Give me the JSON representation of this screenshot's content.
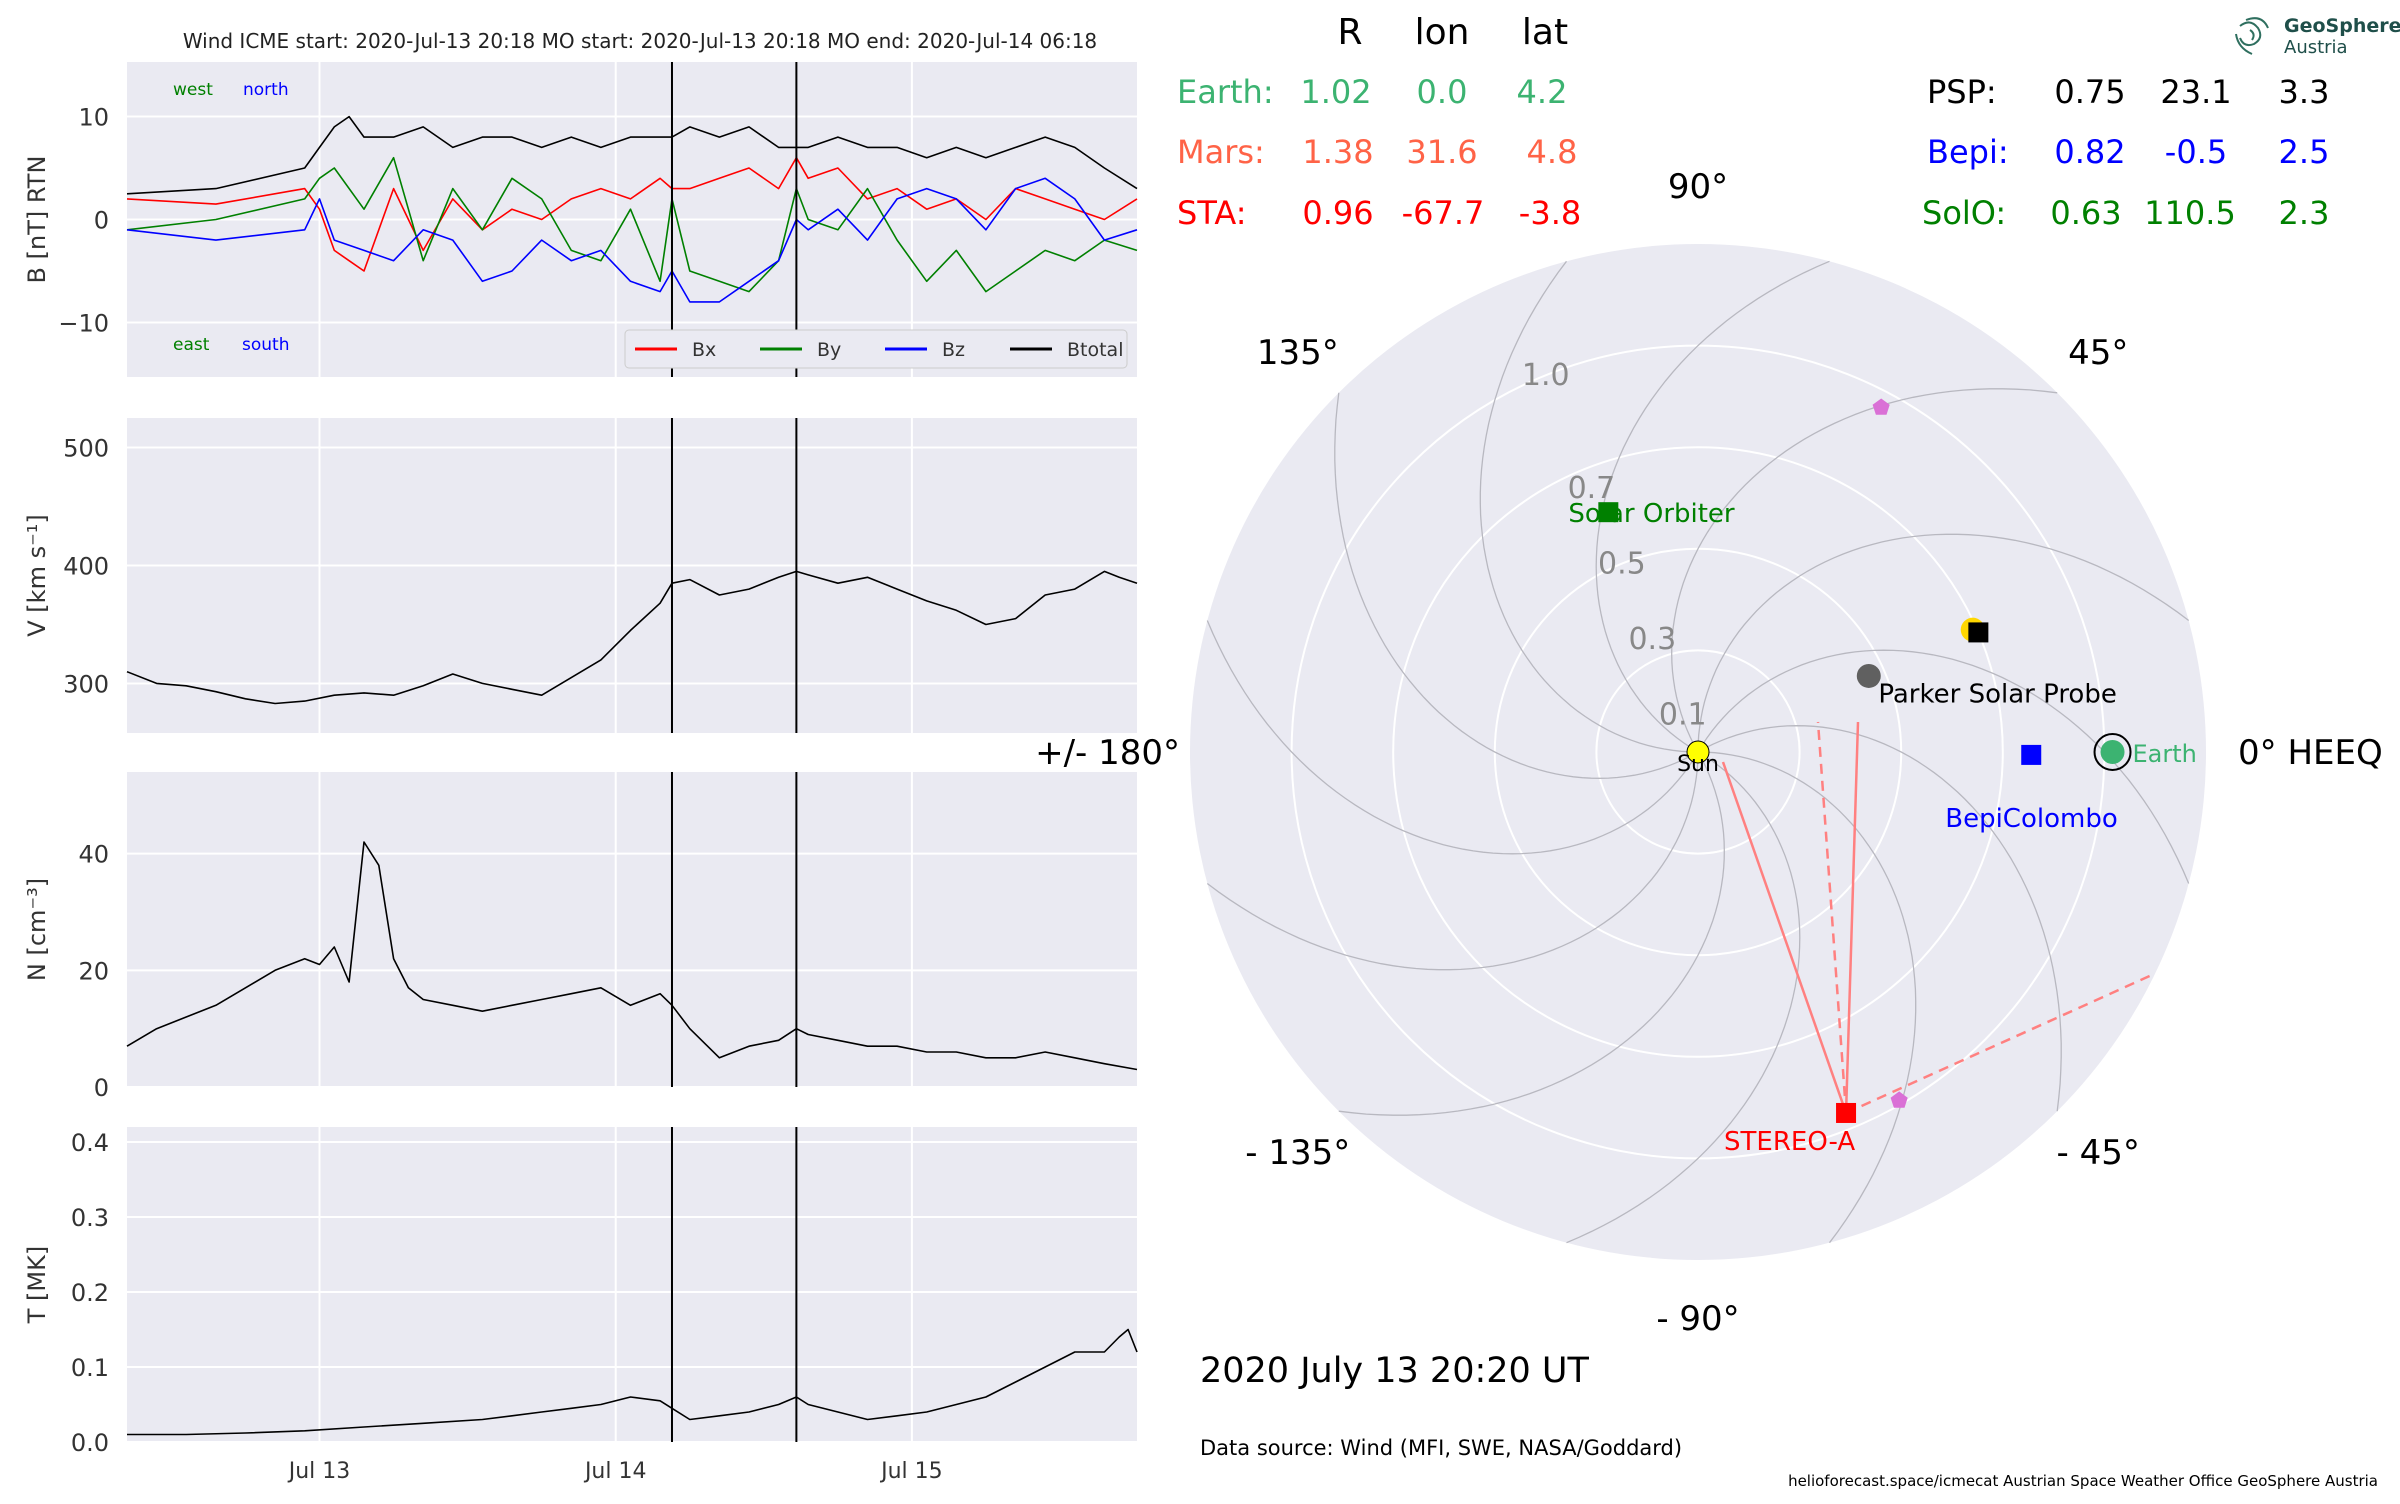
{
  "header": {
    "title": "Wind    ICME start: 2020-Jul-13 20:18   MO start: 2020-Jul-13 20:18   MO end: 2020-Jul-14 06:18"
  },
  "colors": {
    "panel_bg": "#EAEAF2",
    "bx": "#ff0000",
    "by": "#008000",
    "bz": "#0000ff",
    "btotal": "#000000",
    "earth": "#3cb371",
    "mars": "#ff6347",
    "sta": "#ff0000",
    "psp": "#000000",
    "bepi": "#0000ff",
    "solo": "#008000",
    "sun": "#ffff00",
    "psp_dot": "#606060",
    "pentagon": "#da70d6",
    "sta_lines": "#ff8080"
  },
  "pos_table": {
    "headers": [
      "R",
      "lon",
      "lat"
    ],
    "left_rows": [
      {
        "name": "Earth:",
        "r": "1.02",
        "lon": "0.0",
        "lat": "4.2",
        "color": "#3cb371"
      },
      {
        "name": "Mars:",
        "r": "1.38",
        "lon": "31.6",
        "lat": "4.8",
        "color": "#ff6347"
      },
      {
        "name": "STA:",
        "r": "0.96",
        "lon": "-67.7",
        "lat": "-3.8",
        "color": "#ff0000"
      }
    ],
    "right_rows": [
      {
        "name": "PSP:",
        "r": "0.75",
        "lon": "23.1",
        "lat": "3.3",
        "color": "#000000"
      },
      {
        "name": "Bepi:",
        "r": "0.82",
        "lon": "-0.5",
        "lat": "2.5",
        "color": "#0000ff"
      },
      {
        "name": "SolO:",
        "r": "0.63",
        "lon": "110.5",
        "lat": "2.3",
        "color": "#008000"
      }
    ]
  },
  "logo": {
    "line1": "GeoSphere",
    "line2": "Austria"
  },
  "footer": {
    "date": "2020 July 13  20:20 UT",
    "source": "Data source: Wind (MFI, SWE, NASA/Goddard)",
    "credits": "helioforecast.space/icmecat   Austrian Space Weather Office   GeoSphere Austria"
  },
  "chart_data": [
    {
      "type": "line",
      "ylabel": "B [nT] RTN",
      "ylim": [
        -15.3,
        15.3
      ],
      "yticks": [
        {
          "v": 10,
          "label": "10"
        },
        {
          "v": 0,
          "label": "0"
        },
        {
          "v": -10,
          "label": "−10"
        }
      ],
      "xlim": [
        0,
        3.41
      ],
      "vlines": [
        1.84,
        2.26
      ],
      "annotations": {
        "west": "west",
        "north": "north",
        "east": "east",
        "south": "south"
      },
      "legend_position": "lower right",
      "series": [
        {
          "name": "Bx",
          "color": "#ff0000",
          "x": [
            0,
            0.3,
            0.6,
            0.65,
            0.7,
            0.75,
            0.8,
            0.9,
            1.0,
            1.1,
            1.2,
            1.3,
            1.4,
            1.5,
            1.6,
            1.7,
            1.8,
            1.84,
            1.9,
            2.0,
            2.1,
            2.2,
            2.26,
            2.3,
            2.4,
            2.5,
            2.6,
            2.7,
            2.8,
            2.9,
            3.0,
            3.1,
            3.2,
            3.3,
            3.41
          ],
          "y": [
            2,
            1.5,
            3,
            1,
            -3,
            -4,
            -5,
            3,
            -3,
            2,
            -1,
            1,
            0,
            2,
            3,
            2,
            4,
            3,
            3,
            4,
            5,
            3,
            6,
            4,
            5,
            2,
            3,
            1,
            2,
            0,
            3,
            2,
            1,
            0,
            2
          ]
        },
        {
          "name": "By",
          "color": "#008000",
          "x": [
            0,
            0.3,
            0.6,
            0.65,
            0.7,
            0.8,
            0.9,
            1.0,
            1.1,
            1.2,
            1.3,
            1.4,
            1.5,
            1.6,
            1.7,
            1.8,
            1.84,
            1.9,
            2.0,
            2.1,
            2.2,
            2.26,
            2.3,
            2.4,
            2.5,
            2.6,
            2.7,
            2.8,
            2.9,
            3.0,
            3.1,
            3.2,
            3.3,
            3.41
          ],
          "y": [
            -1,
            0,
            2,
            4,
            5,
            1,
            6,
            -4,
            3,
            -1,
            4,
            2,
            -3,
            -4,
            1,
            -6,
            2,
            -5,
            -6,
            -7,
            -4,
            3,
            0,
            -1,
            3,
            -2,
            -6,
            -3,
            -7,
            -5,
            -3,
            -4,
            -2,
            -3
          ]
        },
        {
          "name": "Bz",
          "color": "#0000ff",
          "x": [
            0,
            0.3,
            0.6,
            0.65,
            0.7,
            0.8,
            0.9,
            1.0,
            1.1,
            1.2,
            1.3,
            1.4,
            1.5,
            1.6,
            1.7,
            1.8,
            1.84,
            1.9,
            2.0,
            2.1,
            2.2,
            2.26,
            2.3,
            2.4,
            2.5,
            2.6,
            2.7,
            2.8,
            2.9,
            3.0,
            3.1,
            3.2,
            3.3,
            3.41
          ],
          "y": [
            -1,
            -2,
            -1,
            2,
            -2,
            -3,
            -4,
            -1,
            -2,
            -6,
            -5,
            -2,
            -4,
            -3,
            -6,
            -7,
            -5,
            -8,
            -8,
            -6,
            -4,
            0,
            -1,
            1,
            -2,
            2,
            3,
            2,
            -1,
            3,
            4,
            2,
            -2,
            -1
          ]
        },
        {
          "name": "Btotal",
          "color": "#000000",
          "x": [
            0,
            0.3,
            0.6,
            0.65,
            0.7,
            0.75,
            0.8,
            0.9,
            1.0,
            1.1,
            1.2,
            1.3,
            1.4,
            1.5,
            1.6,
            1.7,
            1.8,
            1.84,
            1.9,
            2.0,
            2.1,
            2.2,
            2.26,
            2.3,
            2.4,
            2.5,
            2.6,
            2.7,
            2.8,
            2.9,
            3.0,
            3.1,
            3.2,
            3.3,
            3.41
          ],
          "y": [
            2.5,
            3,
            5,
            7,
            9,
            10,
            8,
            8,
            9,
            7,
            8,
            8,
            7,
            8,
            7,
            8,
            8,
            8,
            9,
            8,
            9,
            7,
            7,
            7,
            8,
            7,
            7,
            6,
            7,
            6,
            7,
            8,
            7,
            5,
            3
          ]
        }
      ]
    },
    {
      "type": "line",
      "ylabel": "V [km s⁻¹]",
      "ylim": [
        258,
        525
      ],
      "yticks": [
        {
          "v": 500,
          "label": "500"
        },
        {
          "v": 400,
          "label": "400"
        },
        {
          "v": 300,
          "label": "300"
        }
      ],
      "xlim": [
        0,
        3.41
      ],
      "vlines": [
        1.84,
        2.26
      ],
      "series": [
        {
          "name": "V",
          "color": "#000000",
          "x": [
            0,
            0.1,
            0.2,
            0.3,
            0.4,
            0.5,
            0.6,
            0.7,
            0.8,
            0.9,
            1.0,
            1.1,
            1.2,
            1.3,
            1.4,
            1.5,
            1.6,
            1.7,
            1.8,
            1.84,
            1.9,
            2.0,
            2.1,
            2.2,
            2.26,
            2.3,
            2.4,
            2.5,
            2.6,
            2.7,
            2.8,
            2.9,
            3.0,
            3.1,
            3.2,
            3.3,
            3.35,
            3.41
          ],
          "y": [
            310,
            300,
            298,
            293,
            287,
            283,
            285,
            290,
            292,
            290,
            298,
            308,
            300,
            295,
            290,
            305,
            320,
            345,
            368,
            385,
            388,
            375,
            380,
            390,
            395,
            392,
            385,
            390,
            380,
            370,
            362,
            350,
            355,
            375,
            380,
            395,
            390,
            385
          ]
        }
      ]
    },
    {
      "type": "line",
      "ylabel": "N [cm⁻³]",
      "ylim": [
        0,
        54
      ],
      "yticks": [
        {
          "v": 40,
          "label": "40"
        },
        {
          "v": 20,
          "label": "20"
        },
        {
          "v": 0,
          "label": "0"
        }
      ],
      "xlim": [
        0,
        3.41
      ],
      "vlines": [
        1.84,
        2.26
      ],
      "series": [
        {
          "name": "N",
          "color": "#000000",
          "x": [
            0,
            0.1,
            0.2,
            0.3,
            0.4,
            0.5,
            0.6,
            0.65,
            0.7,
            0.75,
            0.8,
            0.85,
            0.9,
            0.95,
            1.0,
            1.1,
            1.2,
            1.3,
            1.4,
            1.5,
            1.6,
            1.7,
            1.8,
            1.84,
            1.9,
            2.0,
            2.1,
            2.2,
            2.26,
            2.3,
            2.4,
            2.5,
            2.6,
            2.7,
            2.8,
            2.9,
            3.0,
            3.1,
            3.2,
            3.3,
            3.41
          ],
          "y": [
            7,
            10,
            12,
            14,
            17,
            20,
            22,
            21,
            24,
            18,
            42,
            38,
            22,
            17,
            15,
            14,
            13,
            14,
            15,
            16,
            17,
            14,
            16,
            14,
            10,
            5,
            7,
            8,
            10,
            9,
            8,
            7,
            7,
            6,
            6,
            5,
            5,
            6,
            5,
            4,
            3
          ]
        }
      ]
    },
    {
      "type": "line",
      "ylabel": "T [MK]",
      "ylim": [
        0,
        0.42
      ],
      "yticks": [
        {
          "v": 0.4,
          "label": "0.4"
        },
        {
          "v": 0.3,
          "label": "0.3"
        },
        {
          "v": 0.2,
          "label": "0.2"
        },
        {
          "v": 0.1,
          "label": "0.1"
        },
        {
          "v": 0.0,
          "label": "0.0"
        }
      ],
      "xlim": [
        0,
        3.41
      ],
      "vlines": [
        1.84,
        2.26
      ],
      "xticks": [
        {
          "v": 0.65,
          "label": "Jul 13"
        },
        {
          "v": 1.65,
          "label": "Jul 14"
        },
        {
          "v": 2.65,
          "label": "Jul 15"
        }
      ],
      "series": [
        {
          "name": "T",
          "color": "#000000",
          "x": [
            0,
            0.2,
            0.4,
            0.6,
            0.8,
            1.0,
            1.2,
            1.3,
            1.4,
            1.5,
            1.6,
            1.7,
            1.8,
            1.84,
            1.9,
            2.0,
            2.1,
            2.2,
            2.26,
            2.3,
            2.4,
            2.5,
            2.6,
            2.7,
            2.8,
            2.9,
            3.0,
            3.1,
            3.2,
            3.3,
            3.35,
            3.38,
            3.41
          ],
          "y": [
            0.01,
            0.01,
            0.012,
            0.015,
            0.02,
            0.025,
            0.03,
            0.035,
            0.04,
            0.045,
            0.05,
            0.06,
            0.055,
            0.045,
            0.03,
            0.035,
            0.04,
            0.05,
            0.06,
            0.05,
            0.04,
            0.03,
            0.035,
            0.04,
            0.05,
            0.06,
            0.08,
            0.1,
            0.12,
            0.12,
            0.14,
            0.15,
            0.12
          ]
        }
      ]
    },
    {
      "type": "polar",
      "r_labels": [
        {
          "v": 0.1,
          "label": "0.1"
        },
        {
          "v": 0.3,
          "label": "0.3"
        },
        {
          "v": 0.5,
          "label": "0.5"
        },
        {
          "v": 0.7,
          "label": "0.7"
        },
        {
          "v": 1.0,
          "label": "1.0"
        }
      ],
      "rmax": 1.25,
      "angle_labels": [
        {
          "deg": 0,
          "label": "0° HEEQ"
        },
        {
          "deg": 45,
          "label": "45°"
        },
        {
          "deg": 90,
          "label": "90°"
        },
        {
          "deg": 135,
          "label": "135°"
        },
        {
          "deg": 180,
          "label": "+/- 180°"
        },
        {
          "deg": -135,
          "label": "- 135°"
        },
        {
          "deg": -90,
          "label": "- 90°"
        },
        {
          "deg": -45,
          "label": "- 45°"
        }
      ],
      "bodies": [
        {
          "name": "Sun",
          "label": "Sun",
          "r": 0.0,
          "lon": 0.0,
          "marker": "circle",
          "color": "#ffff00",
          "label_color": "#000000"
        },
        {
          "name": "Earth",
          "label": "Earth",
          "r": 1.02,
          "lon": 0.0,
          "marker": "circle",
          "color": "#3cb371",
          "label_color": "#3cb371"
        },
        {
          "name": "Mars",
          "label": "",
          "r": 0.74,
          "lon": 24.0,
          "marker": "circle",
          "color": "#ffd700",
          "label_color": "#000000"
        },
        {
          "name": "PSP",
          "label": "Parker Solar Probe",
          "r": 0.75,
          "lon": 23.1,
          "marker": "square",
          "color": "#000000",
          "label_color": "#000000"
        },
        {
          "name": "PSP_pos",
          "label": "",
          "r": 0.46,
          "lon": 24.0,
          "marker": "circle",
          "color": "#606060",
          "label_color": "#000000"
        },
        {
          "name": "Bepi",
          "label": "BepiColombo",
          "r": 0.82,
          "lon": -0.5,
          "marker": "square",
          "color": "#0000ff",
          "label_color": "#0000ff"
        },
        {
          "name": "SolO",
          "label": "Solar Orbiter",
          "r": 0.63,
          "lon": 110.5,
          "marker": "square",
          "color": "#008000",
          "label_color": "#008000"
        },
        {
          "name": "STA",
          "label": "STEREO-A",
          "r": 0.96,
          "lon": -67.7,
          "marker": "square",
          "color": "#ff0000",
          "label_color": "#ff0000"
        },
        {
          "name": "Pentagon1",
          "label": "",
          "r": 0.96,
          "lon": 62.0,
          "marker": "pentagon",
          "color": "#da70d6",
          "label_color": "#000000"
        },
        {
          "name": "Pentagon2",
          "label": "",
          "r": 0.99,
          "lon": -60.0,
          "marker": "pentagon",
          "color": "#da70d6",
          "label_color": "#000000"
        }
      ]
    }
  ]
}
